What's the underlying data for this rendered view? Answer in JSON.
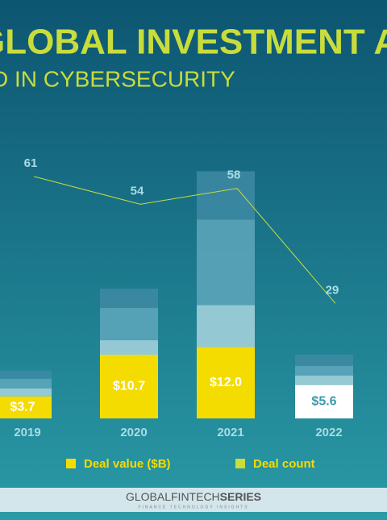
{
  "chart_data": {
    "type": "bar",
    "title": "GLOBAL INVESTMENT AC",
    "subtitle": "D IN CYBERSECURITY",
    "categories": [
      "2019",
      "2020",
      "2021",
      "2022"
    ],
    "series": [
      {
        "name": "Deal value ($B)",
        "color": "#f5dc00",
        "colors": [
          "#f5dc00",
          "#f5dc00",
          "#f5dc00",
          "#ffffff"
        ],
        "values": [
          3.7,
          10.7,
          12.0,
          5.6
        ],
        "value_labels": [
          "$3.7",
          "$10.7",
          "$12.0",
          "$5.6"
        ]
      },
      {
        "name": "Deal count",
        "type": "line",
        "axis": "y2",
        "color": "#c8dc3c",
        "values": [
          61,
          54,
          58,
          29
        ]
      }
    ],
    "ylim": [
      0,
      50
    ],
    "y2lim": [
      0,
      75
    ]
  },
  "footer": {
    "brand_left": "GLOBALFINTECH",
    "brand_right": "SERIES",
    "tagline": "FINANCE TECHNOLOGY INSIGHTS"
  }
}
